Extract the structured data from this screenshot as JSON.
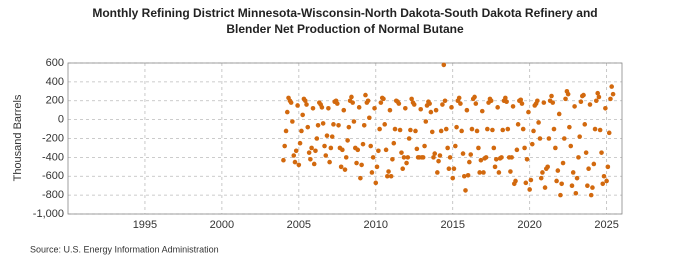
{
  "chart_data": {
    "type": "scatter",
    "title": [
      "Monthly Refining District Minnesota-Wisconsin-North Dakota-South Dakota Refinery and",
      "Blender Net Production of Normal Butane"
    ],
    "y_label": "Thousand Barrels",
    "source": "Source: U.S. Energy Information Administration",
    "color": "#d2690e",
    "grid": true,
    "xlim": [
      1990,
      2026
    ],
    "ylim": [
      -1000,
      600
    ],
    "xticks": [
      1995,
      2000,
      2005,
      2010,
      2015,
      2020,
      2025
    ],
    "yticks": [
      {
        "value": -1000,
        "label": "-1,000"
      },
      -800,
      -600,
      -400,
      -200,
      0,
      200,
      400,
      600
    ],
    "x": [
      2004.0,
      2004.08,
      2004.17,
      2004.25,
      2004.33,
      2004.42,
      2004.5,
      2004.58,
      2004.67,
      2004.75,
      2004.83,
      2004.92,
      2005.0,
      2005.08,
      2005.17,
      2005.25,
      2005.33,
      2005.42,
      2005.5,
      2005.58,
      2005.67,
      2005.75,
      2005.83,
      2005.92,
      2006.0,
      2006.08,
      2006.17,
      2006.25,
      2006.33,
      2006.42,
      2006.5,
      2006.58,
      2006.67,
      2006.75,
      2006.83,
      2006.92,
      2007.0,
      2007.08,
      2007.17,
      2007.25,
      2007.33,
      2007.42,
      2007.5,
      2007.58,
      2007.67,
      2007.75,
      2007.83,
      2007.92,
      2008.0,
      2008.08,
      2008.17,
      2008.25,
      2008.33,
      2008.42,
      2008.5,
      2008.58,
      2008.67,
      2008.75,
      2008.83,
      2008.92,
      2009.0,
      2009.08,
      2009.17,
      2009.25,
      2009.33,
      2009.42,
      2009.5,
      2009.58,
      2009.67,
      2009.75,
      2009.83,
      2009.92,
      2010.0,
      2010.08,
      2010.17,
      2010.25,
      2010.33,
      2010.42,
      2010.5,
      2010.58,
      2010.67,
      2010.75,
      2010.83,
      2010.92,
      2011.0,
      2011.08,
      2011.17,
      2011.25,
      2011.33,
      2011.42,
      2011.5,
      2011.58,
      2011.67,
      2011.75,
      2011.83,
      2011.92,
      2012.0,
      2012.08,
      2012.17,
      2012.25,
      2012.33,
      2012.42,
      2012.5,
      2012.58,
      2012.67,
      2012.75,
      2012.83,
      2012.92,
      2013.0,
      2013.08,
      2013.17,
      2013.25,
      2013.33,
      2013.42,
      2013.5,
      2013.58,
      2013.67,
      2013.75,
      2013.83,
      2013.92,
      2014.0,
      2014.08,
      2014.17,
      2014.25,
      2014.33,
      2014.42,
      2014.5,
      2014.58,
      2014.67,
      2014.75,
      2014.83,
      2014.92,
      2015.0,
      2015.08,
      2015.17,
      2015.25,
      2015.33,
      2015.42,
      2015.5,
      2015.58,
      2015.67,
      2015.75,
      2015.83,
      2015.92,
      2016.0,
      2016.08,
      2016.17,
      2016.25,
      2016.33,
      2016.42,
      2016.5,
      2016.58,
      2016.67,
      2016.75,
      2016.83,
      2016.92,
      2017.0,
      2017.08,
      2017.17,
      2017.25,
      2017.33,
      2017.42,
      2017.5,
      2017.58,
      2017.67,
      2017.75,
      2017.83,
      2017.92,
      2018.0,
      2018.08,
      2018.17,
      2018.25,
      2018.33,
      2018.42,
      2018.5,
      2018.58,
      2018.67,
      2018.75,
      2018.83,
      2018.92,
      2019.0,
      2019.08,
      2019.17,
      2019.25,
      2019.33,
      2019.42,
      2019.5,
      2019.58,
      2019.67,
      2019.75,
      2019.83,
      2019.92,
      2020.0,
      2020.08,
      2020.17,
      2020.25,
      2020.33,
      2020.42,
      2020.5,
      2020.58,
      2020.67,
      2020.75,
      2020.83,
      2020.92,
      2021.0,
      2021.08,
      2021.17,
      2021.25,
      2021.33,
      2021.42,
      2021.5,
      2021.58,
      2021.67,
      2021.75,
      2021.83,
      2021.92,
      2022.0,
      2022.08,
      2022.17,
      2022.25,
      2022.33,
      2022.42,
      2022.5,
      2022.58,
      2022.67,
      2022.75,
      2022.83,
      2022.92,
      2023.0,
      2023.08,
      2023.17,
      2023.25,
      2023.33,
      2023.42,
      2023.5,
      2023.58,
      2023.67,
      2023.75,
      2023.83,
      2023.92,
      2024.0,
      2024.08,
      2024.17,
      2024.25,
      2024.33,
      2024.42,
      2024.5,
      2024.58,
      2024.67,
      2024.75,
      2024.83,
      2024.92,
      2025.0,
      2025.08,
      2025.17,
      2025.25,
      2025.33,
      2025.42
    ],
    "values": [
      -430,
      -280,
      -120,
      80,
      230,
      200,
      180,
      -20,
      -380,
      -450,
      -330,
      150,
      -480,
      -250,
      -120,
      50,
      220,
      200,
      160,
      -80,
      -350,
      -420,
      -300,
      120,
      -470,
      -330,
      -200,
      -60,
      180,
      160,
      130,
      -40,
      -280,
      -380,
      -170,
      120,
      -450,
      -300,
      -180,
      -50,
      190,
      200,
      170,
      -60,
      -300,
      -500,
      -320,
      100,
      -530,
      -400,
      -220,
      -80,
      200,
      240,
      180,
      -20,
      -300,
      -460,
      -320,
      130,
      -620,
      -480,
      -260,
      -60,
      260,
      180,
      200,
      20,
      -280,
      -560,
      -400,
      120,
      -670,
      -500,
      -330,
      -100,
      180,
      230,
      220,
      -50,
      -320,
      -600,
      -550,
      100,
      -600,
      -420,
      -250,
      -100,
      200,
      190,
      170,
      -110,
      -350,
      -520,
      -400,
      120,
      -460,
      -400,
      -200,
      -110,
      220,
      180,
      160,
      -120,
      -310,
      -400,
      -400,
      110,
      -400,
      -400,
      -280,
      -20,
      150,
      190,
      170,
      80,
      -130,
      -400,
      -360,
      100,
      -560,
      -440,
      -380,
      -120,
      160,
      580,
      200,
      -100,
      -300,
      -520,
      -400,
      130,
      -620,
      -520,
      -280,
      -80,
      200,
      230,
      170,
      -120,
      -360,
      -600,
      -750,
      100,
      -590,
      -450,
      -370,
      -100,
      220,
      240,
      170,
      -120,
      -300,
      -560,
      -430,
      90,
      -560,
      -410,
      -400,
      -100,
      180,
      220,
      200,
      -110,
      -300,
      -500,
      -420,
      130,
      -560,
      -410,
      -400,
      -110,
      200,
      230,
      190,
      -100,
      -400,
      -550,
      -400,
      140,
      -680,
      -650,
      -320,
      -50,
      200,
      210,
      170,
      -100,
      -300,
      -670,
      -420,
      80,
      -740,
      -640,
      -260,
      -120,
      150,
      170,
      200,
      -30,
      -200,
      -620,
      -560,
      180,
      -720,
      -520,
      -500,
      -200,
      200,
      250,
      180,
      -100,
      -300,
      -650,
      -540,
      60,
      -800,
      -680,
      -460,
      -200,
      220,
      300,
      270,
      -80,
      -280,
      -700,
      -560,
      140,
      -780,
      -620,
      -400,
      -180,
      190,
      250,
      260,
      -50,
      -350,
      -700,
      -520,
      160,
      -800,
      -720,
      -470,
      -100,
      200,
      280,
      240,
      -110,
      -350,
      -680,
      -600,
      120,
      -650,
      -500,
      -140,
      220,
      350,
      270
    ]
  }
}
